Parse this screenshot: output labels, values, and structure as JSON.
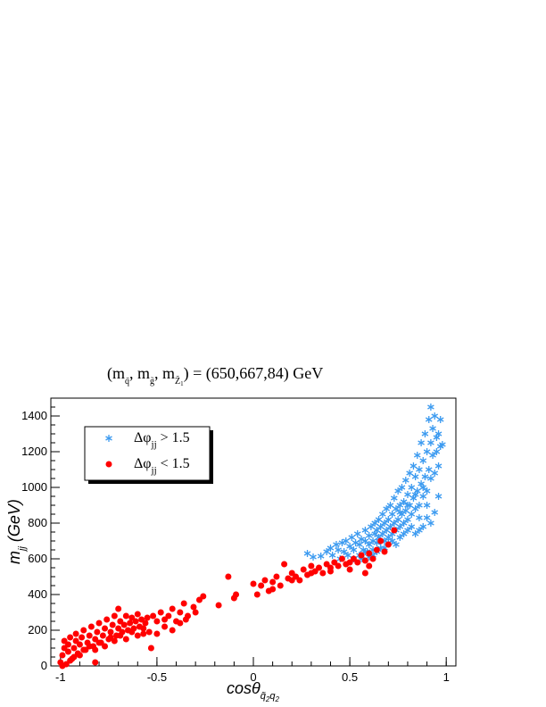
{
  "chart_data": {
    "type": "scatter",
    "title": {
      "prefix": "(m",
      "sub1": "q̃",
      "sep1": ", m",
      "sub2": "g̃",
      "sep2": ", m",
      "sub3": "Z̃",
      "sub3b": "1",
      "suffix": ") = (650,667,84) GeV"
    },
    "xlabel": {
      "main": "cosθ",
      "sub": "q̃",
      "sub_index": "2",
      "sub2": "q",
      "sub2_index": "2"
    },
    "ylabel": {
      "main": "m",
      "sub": "jj",
      "unit": " (GeV)"
    },
    "xlim": [
      -1.05,
      1.05
    ],
    "ylim": [
      0,
      1500
    ],
    "xticks": [
      {
        "v": -1,
        "label": "-1"
      },
      {
        "v": -0.5,
        "label": "-0.5"
      },
      {
        "v": 0,
        "label": "0"
      },
      {
        "v": 0.5,
        "label": "0.5"
      },
      {
        "v": 1,
        "label": "1"
      }
    ],
    "yticks": [
      {
        "v": 0,
        "label": "0"
      },
      {
        "v": 200,
        "label": "200"
      },
      {
        "v": 400,
        "label": "400"
      },
      {
        "v": 600,
        "label": "600"
      },
      {
        "v": 800,
        "label": "800"
      },
      {
        "v": 1000,
        "label": "1000"
      },
      {
        "v": 1200,
        "label": "1200"
      },
      {
        "v": 1400,
        "label": "1400"
      }
    ],
    "legend": {
      "placement": "top-left",
      "entries": [
        {
          "symbol": "Δφ",
          "sub": "jj",
          "rest": " > 1.5"
        },
        {
          "symbol": "Δφ",
          "sub": "jj",
          "rest": " < 1.5"
        }
      ]
    },
    "series": [
      {
        "marker": "asterisk",
        "color": "#3d9bf0",
        "points": [
          [
            0.28,
            630
          ],
          [
            0.31,
            610
          ],
          [
            0.35,
            615
          ],
          [
            0.38,
            640
          ],
          [
            0.4,
            660
          ],
          [
            0.41,
            620
          ],
          [
            0.43,
            680
          ],
          [
            0.44,
            650
          ],
          [
            0.45,
            600
          ],
          [
            0.46,
            690
          ],
          [
            0.47,
            640
          ],
          [
            0.48,
            700
          ],
          [
            0.49,
            620
          ],
          [
            0.5,
            670
          ],
          [
            0.51,
            720
          ],
          [
            0.52,
            650
          ],
          [
            0.53,
            690
          ],
          [
            0.54,
            740
          ],
          [
            0.55,
            620
          ],
          [
            0.55,
            680
          ],
          [
            0.56,
            710
          ],
          [
            0.57,
            650
          ],
          [
            0.58,
            760
          ],
          [
            0.58,
            700
          ],
          [
            0.59,
            640
          ],
          [
            0.6,
            730
          ],
          [
            0.6,
            680
          ],
          [
            0.61,
            780
          ],
          [
            0.62,
            700
          ],
          [
            0.62,
            650
          ],
          [
            0.63,
            740
          ],
          [
            0.63,
            800
          ],
          [
            0.64,
            690
          ],
          [
            0.64,
            760
          ],
          [
            0.65,
            720
          ],
          [
            0.65,
            820
          ],
          [
            0.66,
            660
          ],
          [
            0.66,
            780
          ],
          [
            0.67,
            740
          ],
          [
            0.67,
            850
          ],
          [
            0.68,
            700
          ],
          [
            0.68,
            800
          ],
          [
            0.69,
            760
          ],
          [
            0.69,
            880
          ],
          [
            0.7,
            720
          ],
          [
            0.7,
            820
          ],
          [
            0.71,
            780
          ],
          [
            0.71,
            900
          ],
          [
            0.72,
            740
          ],
          [
            0.72,
            850
          ],
          [
            0.73,
            800
          ],
          [
            0.73,
            940
          ],
          [
            0.74,
            760
          ],
          [
            0.74,
            880
          ],
          [
            0.75,
            820
          ],
          [
            0.75,
            980
          ],
          [
            0.76,
            780
          ],
          [
            0.76,
            900
          ],
          [
            0.77,
            850
          ],
          [
            0.77,
            1000
          ],
          [
            0.78,
            800
          ],
          [
            0.78,
            920
          ],
          [
            0.79,
            870
          ],
          [
            0.79,
            1040
          ],
          [
            0.8,
            820
          ],
          [
            0.8,
            960
          ],
          [
            0.81,
            900
          ],
          [
            0.81,
            1080
          ],
          [
            0.82,
            850
          ],
          [
            0.82,
            1000
          ],
          [
            0.83,
            940
          ],
          [
            0.83,
            1120
          ],
          [
            0.84,
            880
          ],
          [
            0.84,
            1060
          ],
          [
            0.85,
            980
          ],
          [
            0.85,
            1180
          ],
          [
            0.86,
            900
          ],
          [
            0.86,
            1100
          ],
          [
            0.87,
            1020
          ],
          [
            0.87,
            1250
          ],
          [
            0.88,
            950
          ],
          [
            0.88,
            1150
          ],
          [
            0.89,
            1060
          ],
          [
            0.89,
            1300
          ],
          [
            0.9,
            980
          ],
          [
            0.9,
            1200
          ],
          [
            0.91,
            1100
          ],
          [
            0.91,
            1380
          ],
          [
            0.92,
            1450
          ],
          [
            0.92,
            1250
          ],
          [
            0.93,
            1180
          ],
          [
            0.93,
            1330
          ],
          [
            0.94,
            1400
          ],
          [
            0.94,
            1080
          ],
          [
            0.95,
            1280
          ],
          [
            0.95,
            1200
          ],
          [
            0.96,
            1300
          ],
          [
            0.96,
            1120
          ],
          [
            0.97,
            1230
          ],
          [
            0.97,
            1380
          ],
          [
            0.9,
            830
          ],
          [
            0.92,
            800
          ],
          [
            0.88,
            780
          ],
          [
            0.86,
            760
          ],
          [
            0.84,
            740
          ],
          [
            0.94,
            860
          ],
          [
            0.96,
            950
          ],
          [
            0.98,
            1240
          ],
          [
            0.72,
            700
          ],
          [
            0.76,
            720
          ],
          [
            0.8,
            760
          ],
          [
            0.66,
            700
          ],
          [
            0.58,
            640
          ],
          [
            0.62,
            620
          ],
          [
            0.7,
            690
          ],
          [
            0.74,
            680
          ],
          [
            0.78,
            740
          ],
          [
            0.82,
            780
          ],
          [
            0.86,
            830
          ],
          [
            0.9,
            900
          ],
          [
            0.52,
            600
          ],
          [
            0.56,
            600
          ],
          [
            0.6,
            610
          ],
          [
            0.64,
            640
          ],
          [
            0.68,
            660
          ],
          [
            0.84,
            960
          ],
          [
            0.88,
            1000
          ],
          [
            0.92,
            1050
          ],
          [
            0.8,
            900
          ],
          [
            0.76,
            860
          ]
        ]
      },
      {
        "marker": "circle",
        "color": "#ff0000",
        "points": [
          [
            -1.0,
            20
          ],
          [
            -0.99,
            60
          ],
          [
            -0.98,
            100
          ],
          [
            -0.98,
            140
          ],
          [
            -0.97,
            10
          ],
          [
            -0.96,
            80
          ],
          [
            -0.96,
            120
          ],
          [
            -0.95,
            160
          ],
          [
            -0.94,
            40
          ],
          [
            -0.93,
            100
          ],
          [
            -0.92,
            140
          ],
          [
            -0.92,
            180
          ],
          [
            -0.91,
            70
          ],
          [
            -0.9,
            120
          ],
          [
            -0.89,
            160
          ],
          [
            -0.88,
            200
          ],
          [
            -0.87,
            90
          ],
          [
            -0.86,
            130
          ],
          [
            -0.85,
            170
          ],
          [
            -0.84,
            220
          ],
          [
            -0.83,
            110
          ],
          [
            -0.82,
            150
          ],
          [
            -0.82,
            20
          ],
          [
            -0.81,
            190
          ],
          [
            -0.8,
            240
          ],
          [
            -0.79,
            130
          ],
          [
            -0.78,
            170
          ],
          [
            -0.77,
            210
          ],
          [
            -0.76,
            260
          ],
          [
            -0.75,
            150
          ],
          [
            -0.74,
            190
          ],
          [
            -0.73,
            230
          ],
          [
            -0.72,
            280
          ],
          [
            -0.71,
            170
          ],
          [
            -0.7,
            210
          ],
          [
            -0.7,
            320
          ],
          [
            -0.69,
            250
          ],
          [
            -0.68,
            190
          ],
          [
            -0.67,
            230
          ],
          [
            -0.66,
            280
          ],
          [
            -0.65,
            200
          ],
          [
            -0.64,
            240
          ],
          [
            -0.63,
            270
          ],
          [
            -0.62,
            210
          ],
          [
            -0.61,
            250
          ],
          [
            -0.6,
            290
          ],
          [
            -0.59,
            220
          ],
          [
            -0.58,
            260
          ],
          [
            -0.57,
            180
          ],
          [
            -0.56,
            240
          ],
          [
            -0.55,
            270
          ],
          [
            -0.53,
            100
          ],
          [
            -0.52,
            280
          ],
          [
            -0.5,
            250
          ],
          [
            -0.48,
            300
          ],
          [
            -0.46,
            220
          ],
          [
            -0.44,
            280
          ],
          [
            -0.42,
            320
          ],
          [
            -0.4,
            250
          ],
          [
            -0.38,
            300
          ],
          [
            -0.36,
            350
          ],
          [
            -0.34,
            280
          ],
          [
            -0.31,
            330
          ],
          [
            -0.28,
            370
          ],
          [
            -0.26,
            390
          ],
          [
            -0.18,
            340
          ],
          [
            -0.13,
            500
          ],
          [
            -0.1,
            380
          ],
          [
            -0.09,
            400
          ],
          [
            0.02,
            400
          ],
          [
            0.04,
            450
          ],
          [
            0.06,
            480
          ],
          [
            0.08,
            420
          ],
          [
            0.1,
            470
          ],
          [
            0.12,
            500
          ],
          [
            0.14,
            450
          ],
          [
            0.16,
            570
          ],
          [
            0.18,
            490
          ],
          [
            0.2,
            520
          ],
          [
            0.22,
            500
          ],
          [
            0.24,
            480
          ],
          [
            0.26,
            540
          ],
          [
            0.28,
            510
          ],
          [
            0.3,
            560
          ],
          [
            0.32,
            530
          ],
          [
            0.34,
            550
          ],
          [
            0.36,
            520
          ],
          [
            0.38,
            570
          ],
          [
            0.4,
            550
          ],
          [
            0.42,
            580
          ],
          [
            0.44,
            560
          ],
          [
            0.46,
            600
          ],
          [
            0.48,
            570
          ],
          [
            0.5,
            540
          ],
          [
            0.52,
            600
          ],
          [
            0.54,
            580
          ],
          [
            0.56,
            620
          ],
          [
            0.58,
            590
          ],
          [
            0.58,
            520
          ],
          [
            0.6,
            630
          ],
          [
            0.62,
            600
          ],
          [
            0.64,
            650
          ],
          [
            0.66,
            700
          ],
          [
            0.68,
            640
          ],
          [
            0.7,
            680
          ],
          [
            0.73,
            760
          ],
          [
            -0.99,
            0
          ],
          [
            -0.95,
            30
          ],
          [
            -0.93,
            50
          ],
          [
            -0.9,
            60
          ],
          [
            -0.88,
            90
          ],
          [
            -0.85,
            110
          ],
          [
            -0.82,
            90
          ],
          [
            -0.8,
            130
          ],
          [
            -0.77,
            110
          ],
          [
            -0.74,
            160
          ],
          [
            -0.72,
            140
          ],
          [
            -0.69,
            170
          ],
          [
            -0.66,
            150
          ],
          [
            -0.63,
            190
          ],
          [
            -0.6,
            170
          ],
          [
            -0.57,
            210
          ],
          [
            -0.54,
            190
          ],
          [
            -0.5,
            180
          ],
          [
            -0.46,
            260
          ],
          [
            -0.42,
            200
          ],
          [
            -0.38,
            240
          ],
          [
            -0.35,
            260
          ],
          [
            -0.3,
            300
          ],
          [
            0.0,
            460
          ],
          [
            0.1,
            430
          ],
          [
            0.2,
            480
          ],
          [
            0.3,
            520
          ],
          [
            0.4,
            530
          ],
          [
            0.5,
            580
          ],
          [
            0.6,
            560
          ]
        ]
      }
    ]
  }
}
